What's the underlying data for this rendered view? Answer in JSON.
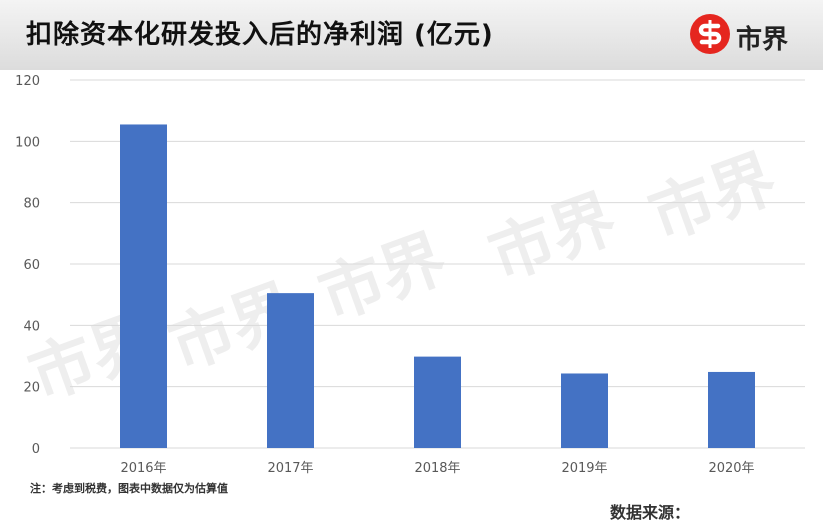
{
  "header": {
    "title": "扣除资本化研发投入后的净利润 (亿元)",
    "logo_text": "市界",
    "logo_icon": "brand-s-icon",
    "brand_color": "#e5261f"
  },
  "footnote": "注：考虑到税费，图表中数据仅为估算值",
  "source": "数据来源：",
  "watermark_text": "市界",
  "chart_data": {
    "type": "bar",
    "title": "扣除资本化研发投入后的净利润 (亿元)",
    "categories": [
      "2016年",
      "2017年",
      "2018年",
      "2019年",
      "2020年"
    ],
    "values": [
      105.5,
      50.5,
      29.8,
      24.3,
      24.8
    ],
    "ylim": [
      0,
      120
    ],
    "yticks": [
      0,
      20,
      40,
      60,
      80,
      100,
      120
    ],
    "grid": true,
    "bar_color": "#4472c4",
    "xlabel": "",
    "ylabel": ""
  }
}
